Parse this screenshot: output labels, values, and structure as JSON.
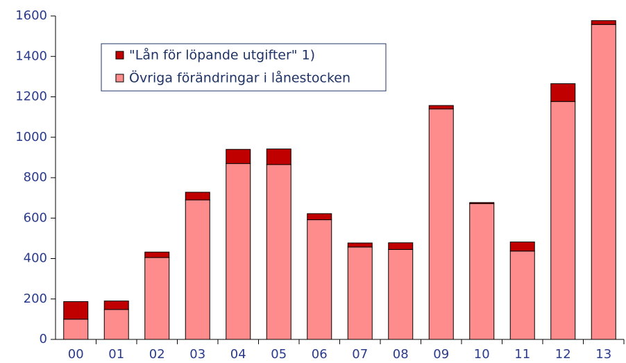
{
  "chart_data": {
    "type": "stacked_bar",
    "categories": [
      "00",
      "01",
      "02",
      "03",
      "04",
      "05",
      "06",
      "07",
      "08",
      "09",
      "10",
      "11",
      "12",
      "13"
    ],
    "series": [
      {
        "name": "\"Lån för löpande utgifter\" 1)",
        "color": "#c00000",
        "values": [
          87,
          42,
          27,
          38,
          70,
          77,
          30,
          20,
          33,
          17,
          5,
          45,
          88,
          19
        ]
      },
      {
        "name": "Övriga förändringar i lånestocken",
        "color": "#ff8c8c",
        "values": [
          100,
          148,
          405,
          690,
          870,
          865,
          592,
          457,
          445,
          1140,
          672,
          437,
          1177,
          1558
        ]
      }
    ],
    "ylim": [
      0,
      1600
    ],
    "yticks": [
      0,
      200,
      400,
      600,
      800,
      1000,
      1200,
      1400,
      1600
    ],
    "legend": "top-left",
    "stack_order": "bottom-up-reversed"
  }
}
